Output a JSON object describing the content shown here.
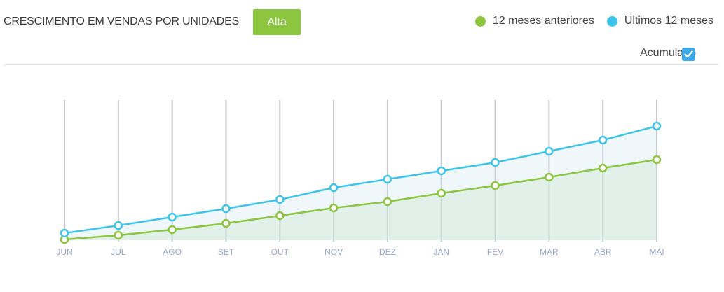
{
  "header": {
    "title": "CRESCIMENTO EM VENDAS POR UNIDADES",
    "badge_label": "Alta"
  },
  "legend": {
    "previous_label": "12 meses anteriores",
    "current_label": "Ultimos 12 meses"
  },
  "options": {
    "accumulated_label": "Acumulado",
    "accumulated_checked": true
  },
  "colors": {
    "previous": "#8cc63f",
    "current": "#3ec4e8",
    "badge": "#8cc63f",
    "checkbox": "#3ca8e8",
    "grid": "#c8c8cc"
  },
  "chart_data": {
    "type": "area",
    "categories": [
      "JUN",
      "JUL",
      "AGO",
      "SET",
      "OUT",
      "NOV",
      "DEZ",
      "JAN",
      "FEV",
      "MAR",
      "ABR",
      "MAI"
    ],
    "series": [
      {
        "name": "12 meses anteriores",
        "values": [
          1,
          7,
          15,
          24,
          35,
          46,
          55,
          67,
          78,
          90,
          103,
          115
        ]
      },
      {
        "name": "Ultimos 12 meses",
        "values": [
          10,
          21,
          33,
          45,
          58,
          75,
          87,
          99,
          111,
          127,
          143,
          163
        ]
      }
    ],
    "ylim": [
      0,
      200
    ],
    "grid": "vertical",
    "legend_position": "top-right"
  }
}
